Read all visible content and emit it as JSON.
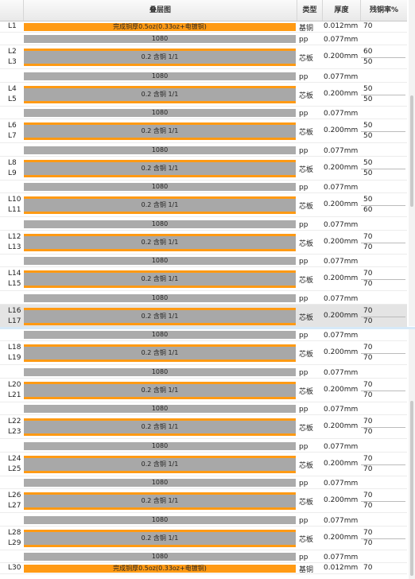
{
  "header": {
    "col_layer": "",
    "col_stackup": "叠层图",
    "col_type": "类型",
    "col_thickness": "厚度",
    "col_residual": "残铜率%"
  },
  "colors": {
    "copper": "#ff9a14",
    "dielectric": "#ababab",
    "highlight": "#e4e4e4"
  },
  "top_outer": {
    "layer": "L1",
    "bar_text": "完成铜厚0.5oz(0.33oz+电镀铜)",
    "type": "基铜",
    "thickness": "0.012mm",
    "residual": "70"
  },
  "bottom_outer": {
    "layer": "L30",
    "bar_text": "完成铜厚0.5oz(0.33oz+电镀铜)",
    "type": "基铜",
    "thickness": "0.012mm",
    "residual": "70"
  },
  "pp": {
    "bar_text": "1080",
    "type": "pp",
    "thickness": "0.077mm"
  },
  "core": {
    "bar_text": "0.2 含铜 1/1",
    "type": "芯板",
    "thickness": "0.200mm"
  },
  "cores": [
    {
      "top": "L2",
      "bottom": "L3",
      "res_top": "60",
      "res_bottom": "50",
      "hl": false
    },
    {
      "top": "L4",
      "bottom": "L5",
      "res_top": "50",
      "res_bottom": "50",
      "hl": false
    },
    {
      "top": "L6",
      "bottom": "L7",
      "res_top": "50",
      "res_bottom": "50",
      "hl": false
    },
    {
      "top": "L8",
      "bottom": "L9",
      "res_top": "50",
      "res_bottom": "50",
      "hl": false
    },
    {
      "top": "L10",
      "bottom": "L11",
      "res_top": "50",
      "res_bottom": "60",
      "hl": false
    },
    {
      "top": "L12",
      "bottom": "L13",
      "res_top": "70",
      "res_bottom": "70",
      "hl": false
    },
    {
      "top": "L14",
      "bottom": "L15",
      "res_top": "70",
      "res_bottom": "70",
      "hl": false
    },
    {
      "top": "L16",
      "bottom": "L17",
      "res_top": "70",
      "res_bottom": "70",
      "hl": true
    },
    {
      "top": "L18",
      "bottom": "L19",
      "res_top": "70",
      "res_bottom": "70",
      "hl": false
    },
    {
      "top": "L20",
      "bottom": "L21",
      "res_top": "70",
      "res_bottom": "70",
      "hl": false
    },
    {
      "top": "L22",
      "bottom": "L23",
      "res_top": "70",
      "res_bottom": "70",
      "hl": false
    },
    {
      "top": "L24",
      "bottom": "L25",
      "res_top": "70",
      "res_bottom": "70",
      "hl": false
    },
    {
      "top": "L26",
      "bottom": "L27",
      "res_top": "70",
      "res_bottom": "70",
      "hl": false
    },
    {
      "top": "L28",
      "bottom": "L29",
      "res_top": "70",
      "res_bottom": "70",
      "hl": false
    }
  ]
}
